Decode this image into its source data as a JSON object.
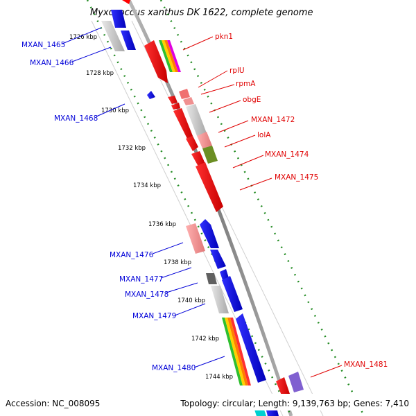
{
  "title": "Myxococcus xanthus DK 1622, complete genome",
  "footer": {
    "accession": "Accession: NC_008095",
    "summary": "Topology: circular; Length: 9,139,763 bp; Genes: 7,410"
  },
  "ticks": [
    "1726 kbp",
    "1728 kbp",
    "1730 kbp",
    "1732 kbp",
    "1734 kbp",
    "1736 kbp",
    "1738 kbp",
    "1740 kbp",
    "1742 kbp",
    "1744 kbp"
  ],
  "genes_forward": [
    "pkn1",
    "rplU",
    "rpmA",
    "obgE",
    "MXAN_1472",
    "lolA",
    "MXAN_1474",
    "MXAN_1475",
    "MXAN_1481"
  ],
  "genes_reverse": [
    "MXAN_1465",
    "MXAN_1466",
    "MXAN_1468",
    "MXAN_1476",
    "MXAN_1477",
    "MXAN_1478",
    "MXAN_1479",
    "MXAN_1480"
  ],
  "colors": {
    "forward_gene": "#ff0000",
    "reverse_gene": "#0000ff",
    "forward_label": "#e00000",
    "reverse_label": "#0000d8",
    "backbone": "#808080",
    "tick_dots": "#228b22"
  }
}
